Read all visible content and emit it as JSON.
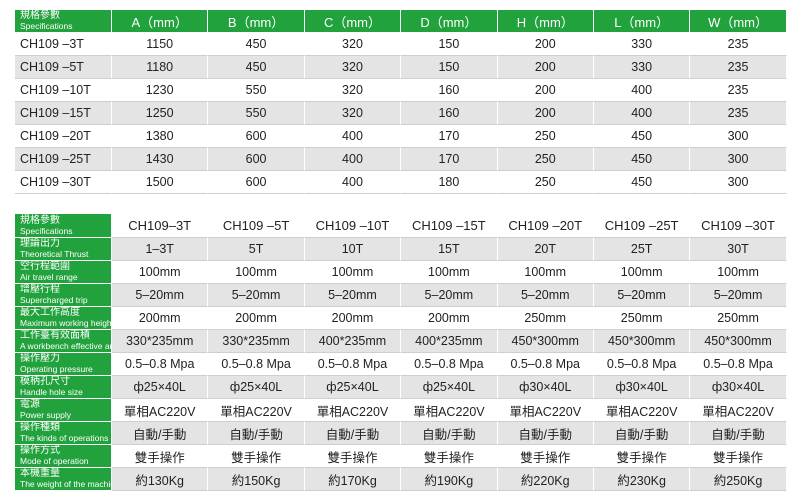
{
  "table1": {
    "header_label": {
      "zh": "規格參數",
      "en": "Specifications"
    },
    "columns": [
      "A（mm）",
      "B（mm）",
      "C（mm）",
      "D（mm）",
      "H（mm）",
      "L（mm）",
      "W（mm）"
    ],
    "rows": [
      [
        "CH109 –3T",
        "1150",
        "450",
        "320",
        "150",
        "200",
        "330",
        "235"
      ],
      [
        "CH109 –5T",
        "1180",
        "450",
        "320",
        "150",
        "200",
        "330",
        "235"
      ],
      [
        "CH109 –10T",
        "1230",
        "550",
        "320",
        "160",
        "200",
        "400",
        "235"
      ],
      [
        "CH109 –15T",
        "1250",
        "550",
        "320",
        "160",
        "200",
        "400",
        "235"
      ],
      [
        "CH109 –20T",
        "1380",
        "600",
        "400",
        "170",
        "250",
        "450",
        "300"
      ],
      [
        "CH109 –25T",
        "1430",
        "600",
        "400",
        "170",
        "250",
        "450",
        "300"
      ],
      [
        "CH109 –30T",
        "1500",
        "600",
        "400",
        "180",
        "250",
        "450",
        "300"
      ]
    ]
  },
  "table2": {
    "header_label": {
      "zh": "規格參數",
      "en": "Specifications"
    },
    "columns": [
      "CH109–3T",
      "CH109 –5T",
      "CH109 –10T",
      "CH109 –15T",
      "CH109 –20T",
      "CH109 –25T",
      "CH109 –30T"
    ],
    "rows": [
      {
        "label": {
          "zh": "理論出力",
          "en": "Theoretical Thrust"
        },
        "cells": [
          "1–3T",
          "5T",
          "10T",
          "15T",
          "20T",
          "25T",
          "30T"
        ]
      },
      {
        "label": {
          "zh": "空行程範圍",
          "en": "Air travel range"
        },
        "cells": [
          "100mm",
          "100mm",
          "100mm",
          "100mm",
          "100mm",
          "100mm",
          "100mm"
        ]
      },
      {
        "label": {
          "zh": "增壓行程",
          "en": "Supercharged trip"
        },
        "cells": [
          "5–20mm",
          "5–20mm",
          "5–20mm",
          "5–20mm",
          "5–20mm",
          "5–20mm",
          "5–20mm"
        ]
      },
      {
        "label": {
          "zh": "最大工作高度",
          "en": "Maximum working height"
        },
        "cells": [
          "200mm",
          "200mm",
          "200mm",
          "200mm",
          "250mm",
          "250mm",
          "250mm"
        ]
      },
      {
        "label": {
          "zh": "工作臺有效面積",
          "en": "A workbench effective area"
        },
        "cells": [
          "330*235mm",
          "330*235mm",
          "400*235mm",
          "400*235mm",
          "450*300mm",
          "450*300mm",
          "450*300mm"
        ]
      },
      {
        "label": {
          "zh": "操作壓力",
          "en": "Operating pressure"
        },
        "cells": [
          "0.5–0.8 Mpa",
          "0.5–0.8 Mpa",
          "0.5–0.8 Mpa",
          "0.5–0.8 Mpa",
          "0.5–0.8 Mpa",
          "0.5–0.8 Mpa",
          "0.5–0.8 Mpa"
        ]
      },
      {
        "label": {
          "zh": "模柄孔尺寸",
          "en": "Handle hole size"
        },
        "cells": [
          "ф25×40L",
          "ф25×40L",
          "ф25×40L",
          "ф25×40L",
          "ф30×40L",
          "ф30×40L",
          "ф30×40L"
        ]
      },
      {
        "label": {
          "zh": "電源",
          "en": "Power supply"
        },
        "cells": [
          "單相AC220V",
          "單相AC220V",
          "單相AC220V",
          "單相AC220V",
          "單相AC220V",
          "單相AC220V",
          "單相AC220V"
        ]
      },
      {
        "label": {
          "zh": "操作種類",
          "en": "The kinds of operations"
        },
        "cells": [
          "自動/手動",
          "自動/手動",
          "自動/手動",
          "自動/手動",
          "自動/手動",
          "自動/手動",
          "自動/手動"
        ]
      },
      {
        "label": {
          "zh": "操作方式",
          "en": "Mode of operation"
        },
        "cells": [
          "雙手操作",
          "雙手操作",
          "雙手操作",
          "雙手操作",
          "雙手操作",
          "雙手操作",
          "雙手操作"
        ]
      },
      {
        "label": {
          "zh": "本機重量",
          "en": "The weight of the machine"
        },
        "cells": [
          "約130Kg",
          "約150Kg",
          "約170Kg",
          "約190Kg",
          "約220Kg",
          "約230Kg",
          "約250Kg"
        ]
      }
    ]
  }
}
